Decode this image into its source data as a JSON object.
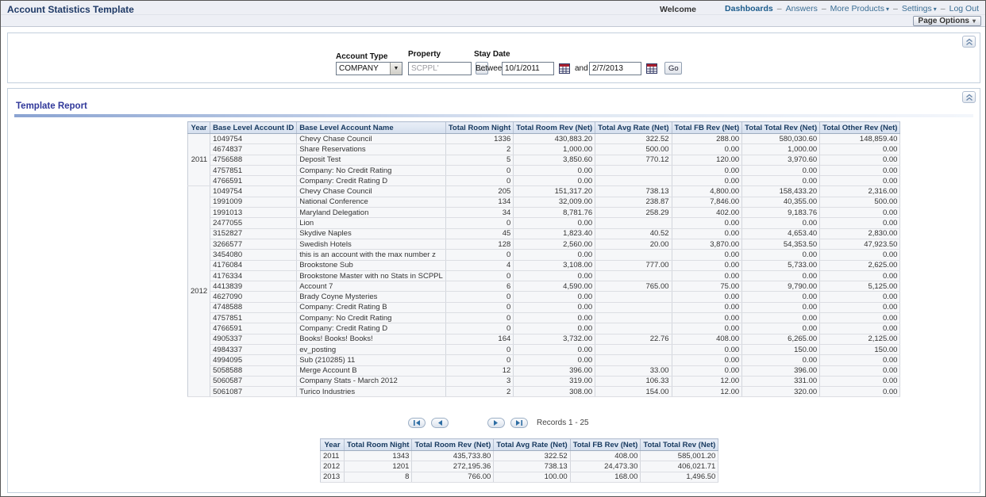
{
  "header": {
    "title": "Account Statistics Template",
    "welcome": "Welcome",
    "nav": [
      {
        "label": "Dashboards",
        "bold": true,
        "caret": false
      },
      {
        "label": "Answers",
        "bold": false,
        "caret": false
      },
      {
        "label": "More Products",
        "bold": false,
        "caret": true
      },
      {
        "label": "Settings",
        "bold": false,
        "caret": true
      },
      {
        "label": "Log Out",
        "bold": false,
        "caret": false
      }
    ],
    "page_options_label": "Page Options"
  },
  "filters": {
    "account_type_label": "Account Type",
    "account_type_value": "COMPANY",
    "property_label": "Property",
    "property_value": "SCPPL'",
    "browse_button_label": "...",
    "stay_date_label": "Stay Date",
    "between_label": "Between",
    "date_from": "10/1/2011",
    "and_label": "and",
    "date_to": "2/7/2013",
    "go_label": "Go"
  },
  "report": {
    "title": "Template Report",
    "columns": [
      "Year",
      "Base Level Account ID",
      "Base Level Account Name",
      "Total Room Night",
      "Total Room Rev (Net)",
      "Total Avg Rate (Net)",
      "Total FB Rev (Net)",
      "Total Total Rev (Net)",
      "Total Other Rev (Net)"
    ],
    "groups": [
      {
        "year": "2011",
        "rows": [
          [
            "1049754",
            "Chevy Chase Council",
            "1336",
            "430,883.20",
            "322.52",
            "288.00",
            "580,030.60",
            "148,859.40"
          ],
          [
            "4674837",
            "Share Reservations",
            "2",
            "1,000.00",
            "500.00",
            "0.00",
            "1,000.00",
            "0.00"
          ],
          [
            "4756588",
            "Deposit Test",
            "5",
            "3,850.60",
            "770.12",
            "120.00",
            "3,970.60",
            "0.00"
          ],
          [
            "4757851",
            "Company: No Credit Rating",
            "0",
            "0.00",
            "",
            "0.00",
            "0.00",
            "0.00"
          ],
          [
            "4766591",
            "Company: Credit Rating D",
            "0",
            "0.00",
            "",
            "0.00",
            "0.00",
            "0.00"
          ]
        ]
      },
      {
        "year": "2012",
        "rows": [
          [
            "1049754",
            "Chevy Chase Council",
            "205",
            "151,317.20",
            "738.13",
            "4,800.00",
            "158,433.20",
            "2,316.00"
          ],
          [
            "1991009",
            "National Conference",
            "134",
            "32,009.00",
            "238.87",
            "7,846.00",
            "40,355.00",
            "500.00"
          ],
          [
            "1991013",
            "Maryland Delegation",
            "34",
            "8,781.76",
            "258.29",
            "402.00",
            "9,183.76",
            "0.00"
          ],
          [
            "2477055",
            "Lion",
            "0",
            "0.00",
            "",
            "0.00",
            "0.00",
            "0.00"
          ],
          [
            "3152827",
            "Skydive Naples",
            "45",
            "1,823.40",
            "40.52",
            "0.00",
            "4,653.40",
            "2,830.00"
          ],
          [
            "3266577",
            "Swedish Hotels",
            "128",
            "2,560.00",
            "20.00",
            "3,870.00",
            "54,353.50",
            "47,923.50"
          ],
          [
            "3454080",
            "this is an account with the max number z",
            "0",
            "0.00",
            "",
            "0.00",
            "0.00",
            "0.00"
          ],
          [
            "4176084",
            "Brookstone Sub",
            "4",
            "3,108.00",
            "777.00",
            "0.00",
            "5,733.00",
            "2,625.00"
          ],
          [
            "4176334",
            "Brookstone Master with no Stats in SCPPL",
            "0",
            "0.00",
            "",
            "0.00",
            "0.00",
            "0.00"
          ],
          [
            "4413839",
            "Account 7",
            "6",
            "4,590.00",
            "765.00",
            "75.00",
            "9,790.00",
            "5,125.00"
          ],
          [
            "4627090",
            "Brady Coyne Mysteries",
            "0",
            "0.00",
            "",
            "0.00",
            "0.00",
            "0.00"
          ],
          [
            "4748588",
            "Company: Credit Rating B",
            "0",
            "0.00",
            "",
            "0.00",
            "0.00",
            "0.00"
          ],
          [
            "4757851",
            "Company: No Credit Rating",
            "0",
            "0.00",
            "",
            "0.00",
            "0.00",
            "0.00"
          ],
          [
            "4766591",
            "Company: Credit Rating D",
            "0",
            "0.00",
            "",
            "0.00",
            "0.00",
            "0.00"
          ],
          [
            "4905337",
            "Books! Books! Books!",
            "164",
            "3,732.00",
            "22.76",
            "408.00",
            "6,265.00",
            "2,125.00"
          ],
          [
            "4984337",
            "ev_posting",
            "0",
            "0.00",
            "",
            "0.00",
            "150.00",
            "150.00"
          ],
          [
            "4994095",
            "Sub (210285) 11",
            "0",
            "0.00",
            "",
            "0.00",
            "0.00",
            "0.00"
          ],
          [
            "5058588",
            "Merge Account B",
            "12",
            "396.00",
            "33.00",
            "0.00",
            "396.00",
            "0.00"
          ],
          [
            "5060587",
            "Company Stats - March 2012",
            "3",
            "319.00",
            "106.33",
            "12.00",
            "331.00",
            "0.00"
          ],
          [
            "5061087",
            "Turico Industries",
            "2",
            "308.00",
            "154.00",
            "12.00",
            "320.00",
            "0.00"
          ]
        ]
      }
    ],
    "pagination": {
      "records_label": "Records 1 - 25"
    }
  },
  "summary": {
    "columns": [
      "Year",
      "Total Room Night",
      "Total Room Rev (Net)",
      "Total Avg Rate (Net)",
      "Total FB Rev (Net)",
      "Total Total Rev (Net)"
    ],
    "rows": [
      [
        "2011",
        "1343",
        "435,733.80",
        "322.52",
        "408.00",
        "585,001.20"
      ],
      [
        "2012",
        "1201",
        "272,195.36",
        "738.13",
        "24,473.30",
        "406,021.71"
      ],
      [
        "2013",
        "8",
        "766.00",
        "100.00",
        "168.00",
        "1,496.50"
      ]
    ]
  },
  "colors": {
    "topbar_bg": "#edeff5",
    "title_text": "#1f3a66",
    "link": "#3b6e94",
    "section_title": "#30389a",
    "table_header_bg": "#dce5f1",
    "table_header_text": "#17395f",
    "row_bg": "#f6f7f9"
  }
}
